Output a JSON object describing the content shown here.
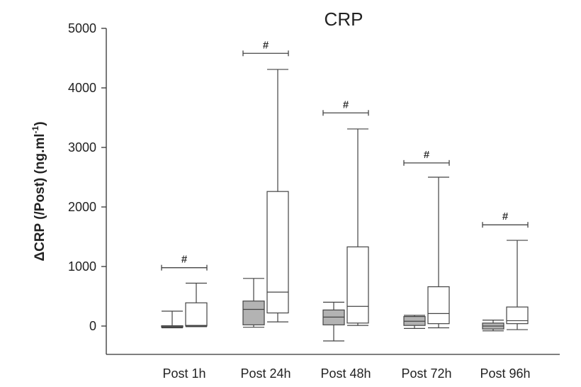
{
  "chart_data": {
    "type": "box",
    "title": "CRP",
    "ylabel_main": "ΔCRP (/Post) (ng.ml",
    "ylabel_sup": "-1",
    "ylabel_tail": ")",
    "xlabel": "",
    "ylim": [
      -500,
      5000
    ],
    "yticks": [
      0,
      1000,
      2000,
      3000,
      4000,
      5000
    ],
    "ytick_labels": [
      "0",
      "1000",
      "2000",
      "3000",
      "4000",
      "5000"
    ],
    "categories": [
      "Post 1h",
      "Post 24h",
      "Post 48h",
      "Post 72h",
      "Post 96h"
    ],
    "series": [
      {
        "fill": "#b3b3b3",
        "boxes": [
          {
            "min": -30,
            "q1": -20,
            "median": -10,
            "q3": 5,
            "max": 250
          },
          {
            "min": -20,
            "q1": 20,
            "median": 280,
            "q3": 420,
            "max": 800
          },
          {
            "min": -250,
            "q1": 20,
            "median": 150,
            "q3": 270,
            "max": 400
          },
          {
            "min": -40,
            "q1": 10,
            "median": 80,
            "q3": 160,
            "max": 180
          },
          {
            "min": -80,
            "q1": -50,
            "median": 0,
            "q3": 50,
            "max": 100
          }
        ]
      },
      {
        "fill": "#ffffff",
        "boxes": [
          {
            "min": -10,
            "q1": 0,
            "median": 10,
            "q3": 390,
            "max": 720
          },
          {
            "min": 70,
            "q1": 220,
            "median": 570,
            "q3": 2260,
            "max": 4310
          },
          {
            "min": 10,
            "q1": 50,
            "median": 330,
            "q3": 1330,
            "max": 3310
          },
          {
            "min": -30,
            "q1": 40,
            "median": 210,
            "q3": 660,
            "max": 2500
          },
          {
            "min": -60,
            "q1": 40,
            "median": 90,
            "q3": 320,
            "max": 1440
          }
        ]
      }
    ],
    "significance": [
      {
        "symbol": "#",
        "y": 980
      },
      {
        "symbol": "#",
        "y": 4580
      },
      {
        "symbol": "#",
        "y": 3580
      },
      {
        "symbol": "#",
        "y": 2740
      },
      {
        "symbol": "#",
        "y": 1700
      }
    ],
    "grid": false,
    "colors": {
      "axis": "#333333",
      "box_stroke": "#444444"
    }
  }
}
